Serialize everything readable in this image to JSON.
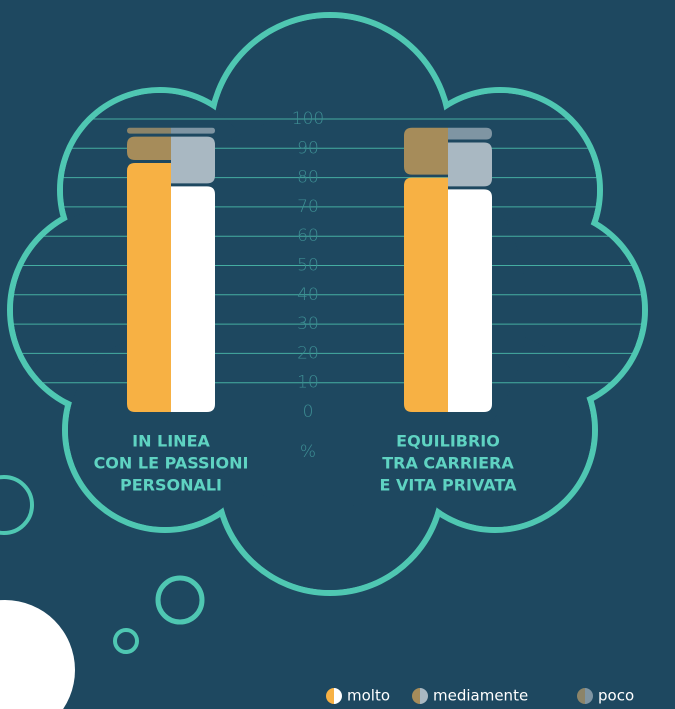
{
  "chart_data": {
    "type": "split-stacked-bar",
    "categories": [
      [
        "IN LINEA",
        "CON LE PASSIONI",
        "PERSONALI"
      ],
      [
        "EQUILIBRIO",
        "TRA CARRIERA",
        "E VITA PRIVATA"
      ]
    ],
    "series": [
      {
        "name": "molto",
        "colors": [
          "#f7b144",
          "#ffffff"
        ],
        "values": [
          [
            85,
            77
          ],
          [
            80,
            76
          ]
        ]
      },
      {
        "name": "mediamente",
        "colors": [
          "#a68c5a",
          "#a9b8c2"
        ],
        "values": [
          [
            9,
            17
          ],
          [
            17,
            16
          ]
        ]
      },
      {
        "name": "poco",
        "colors": [
          "#8c8468",
          "#7f95a3"
        ],
        "values": [
          [
            3,
            3
          ],
          [
            0,
            5
          ]
        ]
      }
    ],
    "y_unit": "%",
    "ylim": [
      0,
      100
    ],
    "yticks": [
      0,
      10,
      20,
      30,
      40,
      50,
      60,
      70,
      80,
      90,
      100
    ],
    "grid": true
  }
}
